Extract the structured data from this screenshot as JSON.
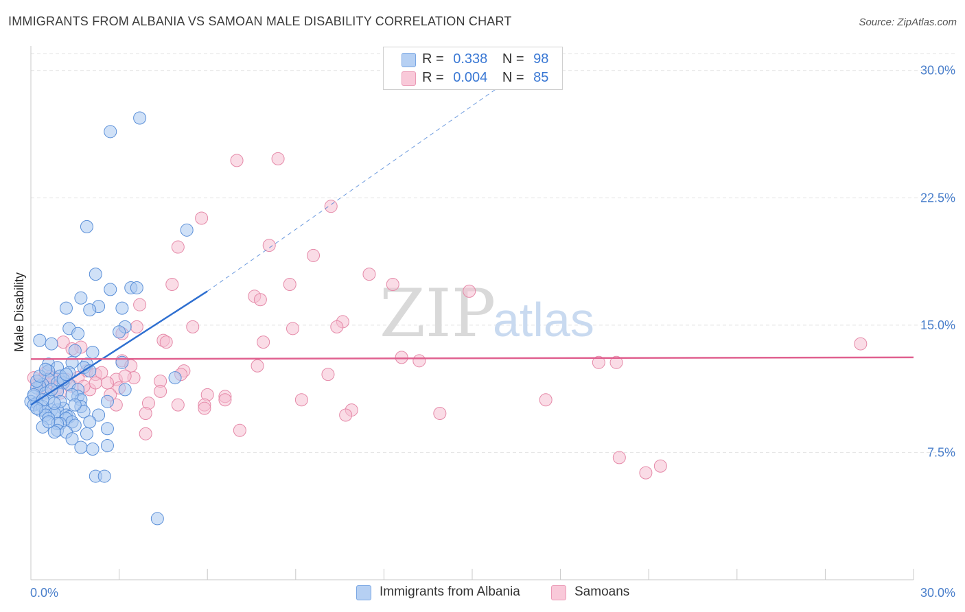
{
  "title": "IMMIGRANTS FROM ALBANIA VS SAMOAN MALE DISABILITY CORRELATION CHART",
  "source": "Source: ZipAtlas.com",
  "watermark": {
    "zip": "ZIP",
    "atlas": "atlas"
  },
  "legend": {
    "rows": [
      {
        "r_label": "R =",
        "r_value": "0.338",
        "n_label": "N =",
        "n_value": "98"
      },
      {
        "r_label": "R =",
        "r_value": "0.004",
        "n_label": "N =",
        "n_value": "85"
      }
    ]
  },
  "bottom_legend": {
    "albania": "Immigrants from Albania",
    "samoans": "Samoans"
  },
  "colors": {
    "albania_fill": "#a9c8f0",
    "albania_stroke": "#5a8fd8",
    "albania_line": "#2e6fd0",
    "samoan_fill": "#f6c0d2",
    "samoan_stroke": "#e589a8",
    "samoan_line": "#e0608f",
    "tick_text": "#4a7fcb",
    "grid": "#e3e3e3"
  },
  "chart_data": {
    "type": "scatter",
    "title": "IMMIGRANTS FROM ALBANIA VS SAMOAN MALE DISABILITY CORRELATION CHART",
    "xlabel": "",
    "ylabel": "Male Disability",
    "xlim": [
      0,
      30
    ],
    "ylim": [
      0,
      31
    ],
    "x_tick_labels": [
      "0.0%",
      "30.0%"
    ],
    "y_ticks": [
      7.5,
      15.0,
      22.5,
      30.0
    ],
    "y_tick_labels": [
      "7.5%",
      "15.0%",
      "22.5%",
      "30.0%"
    ],
    "grid": true,
    "series": [
      {
        "name": "Immigrants from Albania",
        "R": 0.338,
        "N": 98,
        "trend": {
          "x_solid": [
            0,
            6
          ],
          "y_solid": [
            10.3,
            17.0
          ],
          "x_dashed": [
            6,
            16.3
          ],
          "y_dashed": [
            17.0,
            29.5
          ]
        },
        "points": [
          [
            3.7,
            27.2
          ],
          [
            2.7,
            26.4
          ],
          [
            1.9,
            20.8
          ],
          [
            5.3,
            20.6
          ],
          [
            2.2,
            18.0
          ],
          [
            3.4,
            17.2
          ],
          [
            3.6,
            17.2
          ],
          [
            2.7,
            17.1
          ],
          [
            1.7,
            16.6
          ],
          [
            2.3,
            16.1
          ],
          [
            3.1,
            16.0
          ],
          [
            1.2,
            16.0
          ],
          [
            2.0,
            15.9
          ],
          [
            3.2,
            14.9
          ],
          [
            1.3,
            14.8
          ],
          [
            3.0,
            14.6
          ],
          [
            1.6,
            14.5
          ],
          [
            0.3,
            14.1
          ],
          [
            0.7,
            13.9
          ],
          [
            1.5,
            13.5
          ],
          [
            2.1,
            13.4
          ],
          [
            1.4,
            12.8
          ],
          [
            1.9,
            12.7
          ],
          [
            0.6,
            12.7
          ],
          [
            1.8,
            12.5
          ],
          [
            3.1,
            12.8
          ],
          [
            0.9,
            12.5
          ],
          [
            0.6,
            12.3
          ],
          [
            1.3,
            12.2
          ],
          [
            2.0,
            12.3
          ],
          [
            1.0,
            12.0
          ],
          [
            4.9,
            11.9
          ],
          [
            0.6,
            11.8
          ],
          [
            1.1,
            11.6
          ],
          [
            1.3,
            11.5
          ],
          [
            0.9,
            11.6
          ],
          [
            0.4,
            11.5
          ],
          [
            0.3,
            11.4
          ],
          [
            0.2,
            11.3
          ],
          [
            1.6,
            11.2
          ],
          [
            0.9,
            11.1
          ],
          [
            3.2,
            11.2
          ],
          [
            0.5,
            11.0
          ],
          [
            1.6,
            10.8
          ],
          [
            0.1,
            10.8
          ],
          [
            0.6,
            10.7
          ],
          [
            1.7,
            10.6
          ],
          [
            0.0,
            10.5
          ],
          [
            0.2,
            10.4
          ],
          [
            2.6,
            10.5
          ],
          [
            0.1,
            10.3
          ],
          [
            0.4,
            10.2
          ],
          [
            1.1,
            10.1
          ],
          [
            1.7,
            10.2
          ],
          [
            0.7,
            10.0
          ],
          [
            0.9,
            10.0
          ],
          [
            0.3,
            10.0
          ],
          [
            0.5,
            9.9
          ],
          [
            1.8,
            9.9
          ],
          [
            0.8,
            9.8
          ],
          [
            1.2,
            9.7
          ],
          [
            1.3,
            9.6
          ],
          [
            2.3,
            9.7
          ],
          [
            0.5,
            9.7
          ],
          [
            1.2,
            9.5
          ],
          [
            0.6,
            9.5
          ],
          [
            2.0,
            9.3
          ],
          [
            1.4,
            9.3
          ],
          [
            1.0,
            9.2
          ],
          [
            0.9,
            9.2
          ],
          [
            1.5,
            9.1
          ],
          [
            0.4,
            9.0
          ],
          [
            2.6,
            8.9
          ],
          [
            0.9,
            8.8
          ],
          [
            0.8,
            8.7
          ],
          [
            1.2,
            8.7
          ],
          [
            1.9,
            8.6
          ],
          [
            1.4,
            8.3
          ],
          [
            2.6,
            7.9
          ],
          [
            1.7,
            7.8
          ],
          [
            2.1,
            7.7
          ],
          [
            2.2,
            6.1
          ],
          [
            2.5,
            6.1
          ],
          [
            4.3,
            3.6
          ],
          [
            0.1,
            10.9
          ],
          [
            0.2,
            11.7
          ],
          [
            0.4,
            10.6
          ],
          [
            0.7,
            11.2
          ],
          [
            1.0,
            10.5
          ],
          [
            1.4,
            10.9
          ],
          [
            0.3,
            12.0
          ],
          [
            0.5,
            12.4
          ],
          [
            1.1,
            11.8
          ],
          [
            0.8,
            10.4
          ],
          [
            0.2,
            10.1
          ],
          [
            1.5,
            10.3
          ],
          [
            0.6,
            9.3
          ],
          [
            1.2,
            12.1
          ]
        ]
      },
      {
        "name": "Samoans",
        "R": 0.004,
        "N": 85,
        "trend": {
          "x_solid": [
            0,
            30
          ],
          "y_solid": [
            13.0,
            13.1
          ]
        },
        "points": [
          [
            8.4,
            24.8
          ],
          [
            7.0,
            24.7
          ],
          [
            10.2,
            22.0
          ],
          [
            5.8,
            21.3
          ],
          [
            8.1,
            19.7
          ],
          [
            5.0,
            19.6
          ],
          [
            9.6,
            19.1
          ],
          [
            11.5,
            18.0
          ],
          [
            4.8,
            17.4
          ],
          [
            8.8,
            17.4
          ],
          [
            12.3,
            17.4
          ],
          [
            14.9,
            17.0
          ],
          [
            7.6,
            16.7
          ],
          [
            7.8,
            16.5
          ],
          [
            3.7,
            16.2
          ],
          [
            10.6,
            15.2
          ],
          [
            3.6,
            14.9
          ],
          [
            5.5,
            14.9
          ],
          [
            8.9,
            14.8
          ],
          [
            10.4,
            14.9
          ],
          [
            3.1,
            14.5
          ],
          [
            4.5,
            14.1
          ],
          [
            4.6,
            14.0
          ],
          [
            7.9,
            14.0
          ],
          [
            1.1,
            14.0
          ],
          [
            1.7,
            13.7
          ],
          [
            1.4,
            13.6
          ],
          [
            28.2,
            13.9
          ],
          [
            12.6,
            13.1
          ],
          [
            13.2,
            12.9
          ],
          [
            19.3,
            12.8
          ],
          [
            19.9,
            12.8
          ],
          [
            3.1,
            12.9
          ],
          [
            3.4,
            12.6
          ],
          [
            7.7,
            12.6
          ],
          [
            5.2,
            12.3
          ],
          [
            1.9,
            12.3
          ],
          [
            10.1,
            12.1
          ],
          [
            2.2,
            12.1
          ],
          [
            5.1,
            12.1
          ],
          [
            0.5,
            12.2
          ],
          [
            0.8,
            11.9
          ],
          [
            3.5,
            11.9
          ],
          [
            2.9,
            11.8
          ],
          [
            0.3,
            11.7
          ],
          [
            2.6,
            11.6
          ],
          [
            1.2,
            11.8
          ],
          [
            4.4,
            11.7
          ],
          [
            0.6,
            11.5
          ],
          [
            1.4,
            11.4
          ],
          [
            3.0,
            11.3
          ],
          [
            0.9,
            11.3
          ],
          [
            2.0,
            11.2
          ],
          [
            4.4,
            11.1
          ],
          [
            0.2,
            11.5
          ],
          [
            2.7,
            10.9
          ],
          [
            6.0,
            10.9
          ],
          [
            6.6,
            10.8
          ],
          [
            6.6,
            10.6
          ],
          [
            9.2,
            10.6
          ],
          [
            17.5,
            10.6
          ],
          [
            4.0,
            10.4
          ],
          [
            5.0,
            10.3
          ],
          [
            5.9,
            10.3
          ],
          [
            5.9,
            10.1
          ],
          [
            2.9,
            10.3
          ],
          [
            10.9,
            10.0
          ],
          [
            10.7,
            9.7
          ],
          [
            13.9,
            9.8
          ],
          [
            3.9,
            9.8
          ],
          [
            7.1,
            8.8
          ],
          [
            3.9,
            8.6
          ],
          [
            20.0,
            7.2
          ],
          [
            21.4,
            6.7
          ],
          [
            20.9,
            6.3
          ],
          [
            0.4,
            11.0
          ],
          [
            1.6,
            11.9
          ],
          [
            2.4,
            12.2
          ],
          [
            0.7,
            12.0
          ],
          [
            1.8,
            11.4
          ],
          [
            0.1,
            11.9
          ],
          [
            1.0,
            11.0
          ],
          [
            2.2,
            11.6
          ],
          [
            0.5,
            11.3
          ],
          [
            3.2,
            12.0
          ]
        ]
      }
    ]
  }
}
